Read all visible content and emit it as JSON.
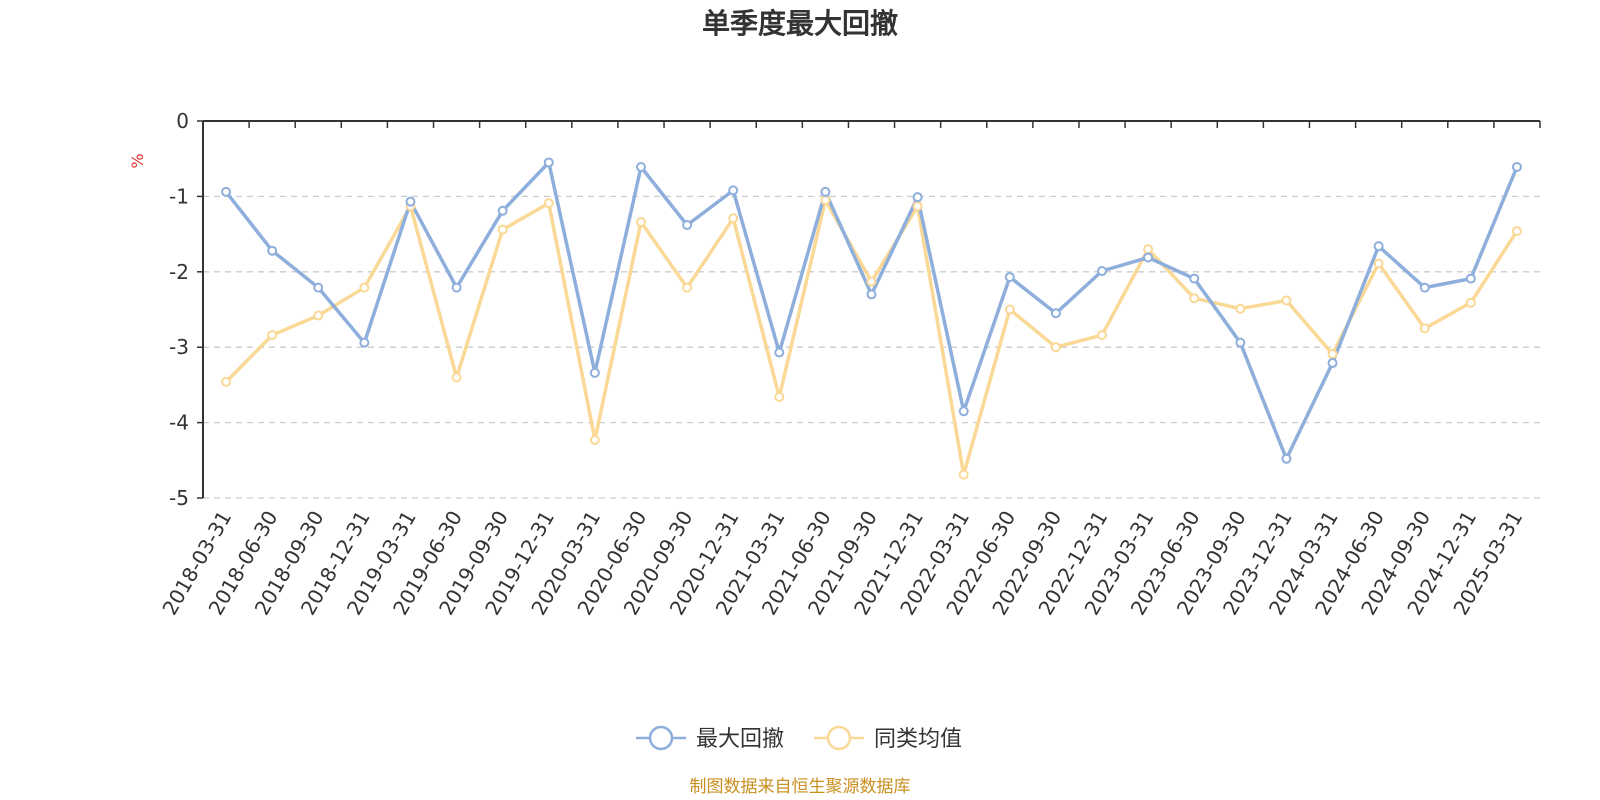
{
  "chart_data": {
    "type": "line",
    "title": "单季度最大回撤",
    "ylabel": "%",
    "ylim": [
      -5,
      0
    ],
    "yticks": [
      0,
      -1,
      -2,
      -3,
      -4,
      -5
    ],
    "grid": true,
    "legend_position": "bottom",
    "categories": [
      "2018-03-31",
      "2018-06-30",
      "2018-09-30",
      "2018-12-31",
      "2019-03-31",
      "2019-06-30",
      "2019-09-30",
      "2019-12-31",
      "2020-03-31",
      "2020-06-30",
      "2020-09-30",
      "2020-12-31",
      "2021-03-31",
      "2021-06-30",
      "2021-09-30",
      "2021-12-31",
      "2022-03-31",
      "2022-06-30",
      "2022-09-30",
      "2022-12-31",
      "2023-03-31",
      "2023-06-30",
      "2023-09-30",
      "2023-12-31",
      "2024-03-31",
      "2024-06-30",
      "2024-09-30",
      "2024-12-31",
      "2025-03-31"
    ],
    "series": [
      {
        "name": "最大回撤",
        "color": "#8eaedb",
        "values": [
          -0.94,
          -1.72,
          -2.21,
          -2.94,
          -1.07,
          -2.21,
          -1.19,
          -0.55,
          -3.34,
          -0.61,
          -1.38,
          -0.92,
          -3.07,
          -0.94,
          -2.3,
          -1.01,
          -3.85,
          -2.07,
          -2.55,
          -1.99,
          -1.81,
          -2.09,
          -2.94,
          -4.48,
          -3.21,
          -1.66,
          -2.21,
          -2.09,
          -0.61
        ]
      },
      {
        "name": "同类均值",
        "color": "#fad896",
        "values": [
          -3.46,
          -2.84,
          -2.58,
          -2.21,
          -1.13,
          -3.4,
          -1.44,
          -1.09,
          -4.23,
          -1.34,
          -2.21,
          -1.29,
          -3.66,
          -1.05,
          -2.13,
          -1.13,
          -4.69,
          -2.5,
          -3.0,
          -2.84,
          -1.7,
          -2.35,
          -2.49,
          -2.38,
          -3.09,
          -1.89,
          -2.75,
          -2.41,
          -1.46
        ]
      }
    ]
  },
  "source_text": "制图数据来自恒生聚源数据库",
  "colors": {
    "source": "#c9901f",
    "unit": "#e03030",
    "axis": "#333333",
    "grid": "#cccccc"
  }
}
